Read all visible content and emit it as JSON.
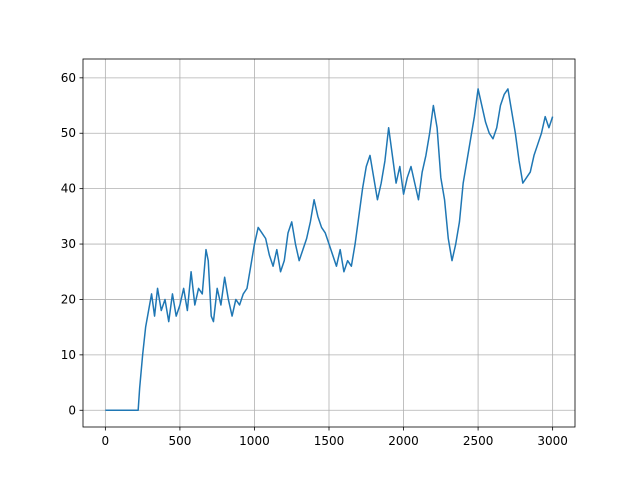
{
  "chart_data": {
    "type": "line",
    "x": [
      0,
      220,
      230,
      250,
      270,
      290,
      310,
      330,
      350,
      375,
      400,
      425,
      450,
      475,
      500,
      525,
      550,
      575,
      600,
      625,
      650,
      675,
      690,
      710,
      725,
      750,
      775,
      800,
      825,
      850,
      875,
      900,
      925,
      950,
      975,
      1000,
      1025,
      1050,
      1075,
      1100,
      1125,
      1150,
      1175,
      1200,
      1225,
      1250,
      1275,
      1300,
      1325,
      1350,
      1375,
      1400,
      1425,
      1450,
      1475,
      1500,
      1525,
      1550,
      1575,
      1600,
      1625,
      1650,
      1675,
      1700,
      1725,
      1750,
      1775,
      1800,
      1825,
      1850,
      1875,
      1900,
      1925,
      1950,
      1975,
      2000,
      2025,
      2050,
      2075,
      2100,
      2125,
      2150,
      2175,
      2200,
      2225,
      2250,
      2275,
      2300,
      2325,
      2350,
      2375,
      2400,
      2425,
      2450,
      2475,
      2500,
      2525,
      2550,
      2575,
      2600,
      2625,
      2650,
      2675,
      2700,
      2725,
      2750,
      2775,
      2800,
      2825,
      2850,
      2875,
      2900,
      2925,
      2950,
      2975,
      3000
    ],
    "series": [
      {
        "color": "#1f77b4",
        "values": [
          0,
          0,
          4,
          10,
          15,
          18,
          21,
          17,
          22,
          18,
          20,
          16,
          21,
          17,
          19,
          22,
          18,
          25,
          19,
          22,
          21,
          29,
          27,
          17,
          16,
          22,
          19,
          24,
          20,
          17,
          20,
          19,
          21,
          22,
          26,
          30,
          33,
          32,
          31,
          28,
          26,
          29,
          25,
          27,
          32,
          34,
          30,
          27,
          29,
          31,
          34,
          38,
          35,
          33,
          32,
          30,
          28,
          26,
          29,
          25,
          27,
          26,
          30,
          35,
          40,
          44,
          46,
          42,
          38,
          41,
          45,
          51,
          46,
          41,
          44,
          39,
          42,
          44,
          41,
          38,
          43,
          46,
          50,
          55,
          51,
          42,
          38,
          31,
          27,
          30,
          34,
          41,
          45,
          49,
          53,
          58,
          55,
          52,
          50,
          49,
          51,
          55,
          57,
          58,
          54,
          50,
          45,
          41,
          42,
          43,
          46,
          48,
          50,
          53,
          51,
          53
        ]
      }
    ],
    "xlim": [
      -150,
      3150
    ],
    "ylim": [
      -3.02,
      63.4
    ],
    "xticks": [
      0,
      500,
      1000,
      1500,
      2000,
      2500,
      3000
    ],
    "yticks": [
      0,
      10,
      20,
      30,
      40,
      50,
      60
    ],
    "grid": true
  }
}
